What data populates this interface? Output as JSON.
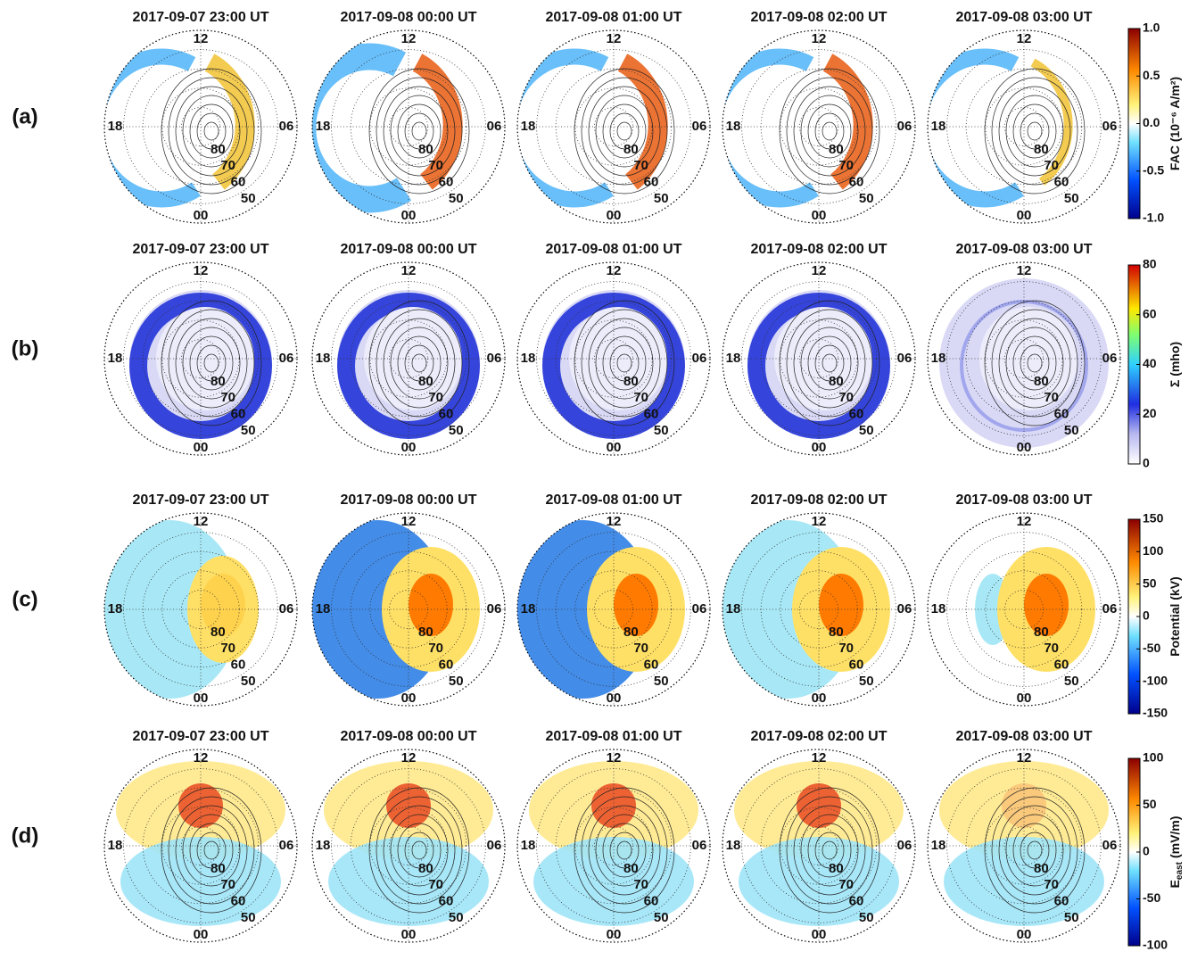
{
  "rows": [
    {
      "label": "(a)",
      "titles": [
        "2017-09-07 23:00 UT",
        "2017-09-08 00:00 UT",
        "2017-09-08 01:00 UT",
        "2017-09-08 02:00 UT",
        "2017-09-08 03:00 UT"
      ],
      "colorbar": {
        "label": "FAC (10⁻⁶ A/m²)",
        "lim": [
          -1,
          1
        ],
        "ticks": [
          {
            "value": -1,
            "label": "-1.0"
          },
          {
            "value": -0.5,
            "label": "-0.5"
          },
          {
            "value": 0,
            "label": "0.0"
          },
          {
            "value": 0.5,
            "label": "0.5"
          },
          {
            "value": 1,
            "label": "1.0"
          }
        ]
      }
    },
    {
      "label": "(b)",
      "titles": [
        "2017-09-07 23:00 UT",
        "2017-09-08 00:00 UT",
        "2017-09-08 01:00 UT",
        "2017-09-08 02:00 UT",
        "2017-09-08 03:00 UT"
      ],
      "colorbar": {
        "label": "Σ (mho)",
        "lim": [
          0,
          80
        ],
        "ticks": [
          0,
          20,
          40,
          60,
          80
        ]
      }
    },
    {
      "label": "(c)",
      "titles": [
        "2017-09-07 23:00 UT",
        "2017-09-08 00:00 UT",
        "2017-09-08 01:00 UT",
        "2017-09-08 02:00 UT",
        "2017-09-08 03:00 UT"
      ],
      "colorbar": {
        "label": "Potential (kV)",
        "lim": [
          -150,
          150
        ],
        "ticks": [
          -150,
          -100,
          -50,
          0,
          50,
          100,
          150
        ]
      }
    },
    {
      "label": "(d)",
      "titles": [
        "2017-09-07 23:00 UT",
        "2017-09-08 00:00 UT",
        "2017-09-08 01:00 UT",
        "2017-09-08 02:00 UT",
        "2017-09-08 03:00 UT"
      ],
      "colorbar": {
        "label": "E",
        "label_sub": "east",
        "label_unit": "(mV/m)",
        "lim": [
          -100,
          100
        ],
        "ticks": [
          -100,
          -50,
          0,
          50,
          100
        ]
      }
    }
  ],
  "polar_labels": {
    "mlt": {
      "top": "12",
      "left": "18",
      "right": "06",
      "bottom": "00"
    },
    "lat": [
      "80",
      "70",
      "60",
      "50"
    ]
  }
}
